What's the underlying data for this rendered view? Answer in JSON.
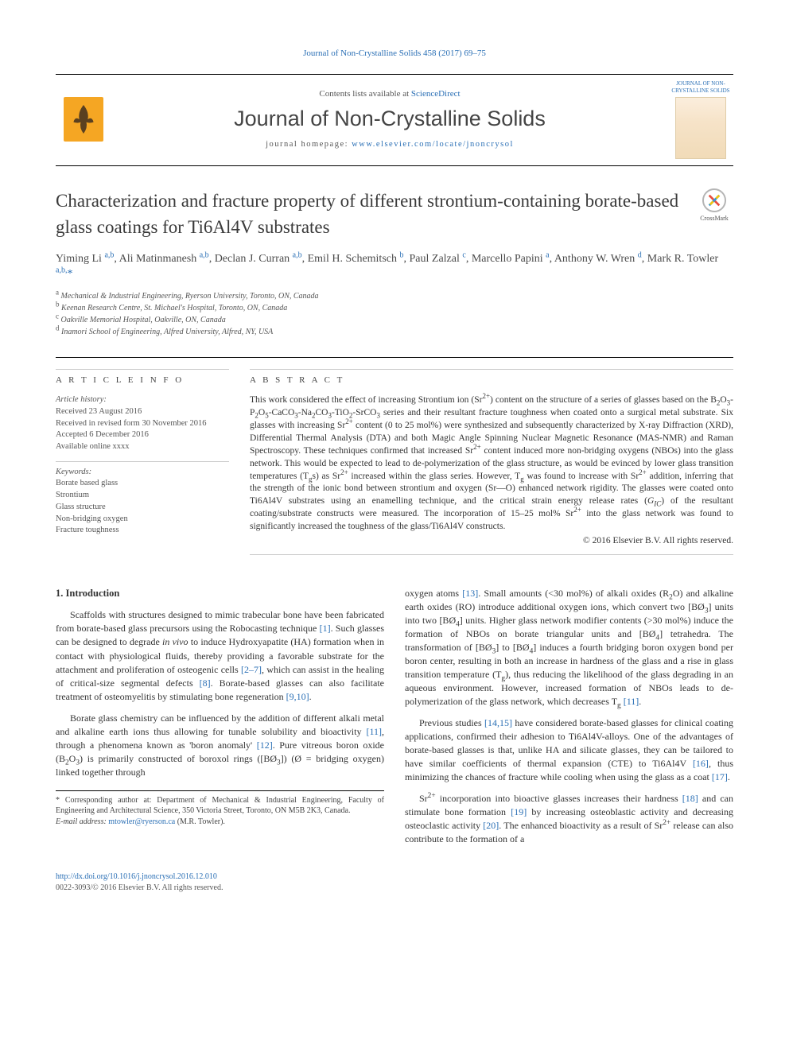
{
  "header_link": "Journal of Non-Crystalline Solids 458 (2017) 69–75",
  "banner": {
    "contents_pre": "Contents lists available at ",
    "contents_link": "ScienceDirect",
    "journal_name": "Journal of Non-Crystalline Solids",
    "homepage_pre": "journal homepage: ",
    "homepage_url": "www.elsevier.com/locate/jnoncrysol",
    "publisher": "ELSEVIER",
    "cover_label": "JOURNAL OF NON-CRYSTALLINE SOLIDS"
  },
  "title": "Characterization and fracture property of different strontium-containing borate-based glass coatings for Ti6Al4V substrates",
  "crossmark_label": "CrossMark",
  "authors_html": "Yiming Li <sup>a,b</sup>, Ali Matinmanesh <sup>a,b</sup>, Declan J. Curran <sup>a,b</sup>, Emil H. Schemitsch <sup>b</sup>, Paul Zalzal <sup>c</sup>, Marcello Papini <sup>a</sup>, Anthony W. Wren <sup>d</sup>, Mark R. Towler <sup>a,b,</sup><span class='star'>*</span>",
  "affiliations": [
    {
      "sup": "a",
      "text": "Mechanical & Industrial Engineering, Ryerson University, Toronto, ON, Canada"
    },
    {
      "sup": "b",
      "text": "Keenan Research Centre, St. Michael's Hospital, Toronto, ON, Canada"
    },
    {
      "sup": "c",
      "text": "Oakville Memorial Hospital, Oakville, ON, Canada"
    },
    {
      "sup": "d",
      "text": "Inamori School of Engineering, Alfred University, Alfred, NY, USA"
    }
  ],
  "article_info": {
    "heading": "A R T I C L E   I N F O",
    "history_label": "Article history:",
    "history": [
      "Received 23 August 2016",
      "Received in revised form 30 November 2016",
      "Accepted 6 December 2016",
      "Available online xxxx"
    ],
    "keywords_label": "Keywords:",
    "keywords": [
      "Borate based glass",
      "Strontium",
      "Glass structure",
      "Non-bridging oxygen",
      "Fracture toughness"
    ]
  },
  "abstract": {
    "heading": "A B S T R A C T",
    "text_html": "This work considered the effect of increasing Strontium ion (Sr<sup>2+</sup>) content on the structure of a series of glasses based on the B<sub>2</sub>O<sub>3</sub>-P<sub>2</sub>O<sub>5</sub>-CaCO<sub>3</sub>-Na<sub>2</sub>CO<sub>3</sub>-TiO<sub>2</sub>-SrCO<sub>3</sub> series and their resultant fracture toughness when coated onto a surgical metal substrate. Six glasses with increasing Sr<sup>2+</sup> content (0 to 25 mol%) were synthesized and subsequently characterized by X-ray Diffraction (XRD), Differential Thermal Analysis (DTA) and both Magic Angle Spinning Nuclear Magnetic Resonance (MAS-NMR) and Raman Spectroscopy. These techniques confirmed that increased Sr<sup>2+</sup> content induced more non-bridging oxygens (NBOs) into the glass network. This would be expected to lead to de-polymerization of the glass structure, as would be evinced by lower glass transition temperatures (T<sub>g</sub>s) as Sr<sup>2+</sup> increased within the glass series. However, T<sub>g</sub> was found to increase with Sr<sup>2+</sup> addition, inferring that the strength of the ionic bond between strontium and oxygen (Sr—O) enhanced network rigidity. The glasses were coated onto Ti6Al4V substrates using an enamelling technique, and the critical strain energy release rates (<i>G<sub>IC</sub></i>) of the resultant coating/substrate constructs were measured. The incorporation of 15–25 mol% Sr<sup>2+</sup> into the glass network was found to significantly increased the toughness of the glass/Ti6Al4V constructs.",
    "copyright": "© 2016 Elsevier B.V. All rights reserved."
  },
  "section1_heading": "1. Introduction",
  "col_left": [
    "Scaffolds with structures designed to mimic trabecular bone have been fabricated from borate-based glass precursors using the Robocasting technique <span class='cite'>[1]</span>. Such glasses can be designed to degrade <i>in vivo</i> to induce Hydroxyapatite (HA) formation when in contact with physiological fluids, thereby providing a favorable substrate for the attachment and proliferation of osteogenic cells <span class='cite'>[2–7]</span>, which can assist in the healing of critical-size segmental defects <span class='cite'>[8]</span>. Borate-based glasses can also facilitate treatment of osteomyelitis by stimulating bone regeneration <span class='cite'>[9,10]</span>.",
    "Borate glass chemistry can be influenced by the addition of different alkali metal and alkaline earth ions thus allowing for tunable solubility and bioactivity <span class='cite'>[11]</span>, through a phenomena known as 'boron anomaly' <span class='cite'>[12]</span>. Pure vitreous boron oxide (B<sub>2</sub>O<sub>3</sub>) is primarily constructed of boroxol rings ([BØ<sub>3</sub>]) (Ø = bridging oxygen) linked together through"
  ],
  "col_right": [
    "oxygen atoms <span class='cite'>[13]</span>. Small amounts (&lt;30 mol%) of alkali oxides (R<sub>2</sub>O) and alkaline earth oxides (RO) introduce additional oxygen ions, which convert two [BØ<sub>3</sub>] units into two [BØ<sub>4</sub>] units. Higher glass network modifier contents (&gt;30 mol%) induce the formation of NBOs on borate triangular units and [BØ<sub>4</sub>] tetrahedra. The transformation of [BØ<sub>3</sub>] to [BØ<sub>4</sub>] induces a fourth bridging boron oxygen bond per boron center, resulting in both an increase in hardness of the glass and a rise in glass transition temperature (T<sub>g</sub>), thus reducing the likelihood of the glass degrading in an aqueous environment. However, increased formation of NBOs leads to de-polymerization of the glass network, which decreases T<sub>g</sub> <span class='cite'>[11]</span>.",
    "Previous studies <span class='cite'>[14,15]</span> have considered borate-based glasses for clinical coating applications, confirmed their adhesion to Ti6Al4V-alloys. One of the advantages of borate-based glasses is that, unlike HA and silicate glasses, they can be tailored to have similar coefficients of thermal expansion (CTE) to Ti6Al4V <span class='cite'>[16]</span>, thus minimizing the chances of fracture while cooling when using the glass as a coat <span class='cite'>[17]</span>.",
    "Sr<sup>2+</sup> incorporation into bioactive glasses increases their hardness <span class='cite'>[18]</span> and can stimulate bone formation <span class='cite'>[19]</span> by increasing osteoblastic activity and decreasing osteoclastic activity <span class='cite'>[20]</span>. The enhanced bioactivity as a result of Sr<sup>2+</sup> release can also contribute to the formation of a"
  ],
  "footnote": {
    "correspond": "* Corresponding author at: Department of Mechanical & Industrial Engineering, Faculty of Engineering and Architectural Science, 350 Victoria Street, Toronto, ON M5B 2K3, Canada.",
    "email_label": "E-mail address:",
    "email": "mtowler@ryerson.ca",
    "email_who": "(M.R. Towler)."
  },
  "footer": {
    "doi": "http://dx.doi.org/10.1016/j.jnoncrysol.2016.12.010",
    "issn": "0022-3093/© 2016 Elsevier B.V. All rights reserved."
  }
}
